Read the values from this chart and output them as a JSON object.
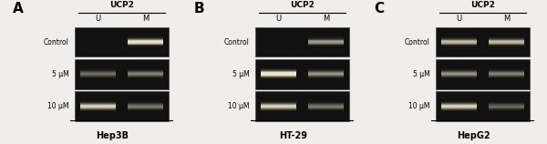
{
  "panels": [
    {
      "label": "A",
      "cell_line": "Hep3B",
      "rows": [
        "Control",
        "5 μM",
        "10 μM"
      ],
      "lanes": {
        "Control": {
          "U": 0.0,
          "M": 0.9
        },
        "5 μM": {
          "U": 0.6,
          "M": 0.65
        },
        "10 μM": {
          "U": 0.85,
          "M": 0.6
        }
      }
    },
    {
      "label": "B",
      "cell_line": "HT-29",
      "rows": [
        "Control",
        "5 μM",
        "10 μM"
      ],
      "lanes": {
        "Control": {
          "U": 0.1,
          "M": 0.65
        },
        "5 μM": {
          "U": 1.0,
          "M": 0.7
        },
        "10 μM": {
          "U": 0.85,
          "M": 0.6
        }
      }
    },
    {
      "label": "C",
      "cell_line": "HepG2",
      "rows": [
        "Control",
        "5 μM",
        "10 μM"
      ],
      "lanes": {
        "Control": {
          "U": 0.75,
          "M": 0.75
        },
        "5 μM": {
          "U": 0.7,
          "M": 0.65
        },
        "10 μM": {
          "U": 0.85,
          "M": 0.55
        }
      }
    }
  ],
  "fig_bg": "#f0eeea",
  "gel_bg": "#111111"
}
